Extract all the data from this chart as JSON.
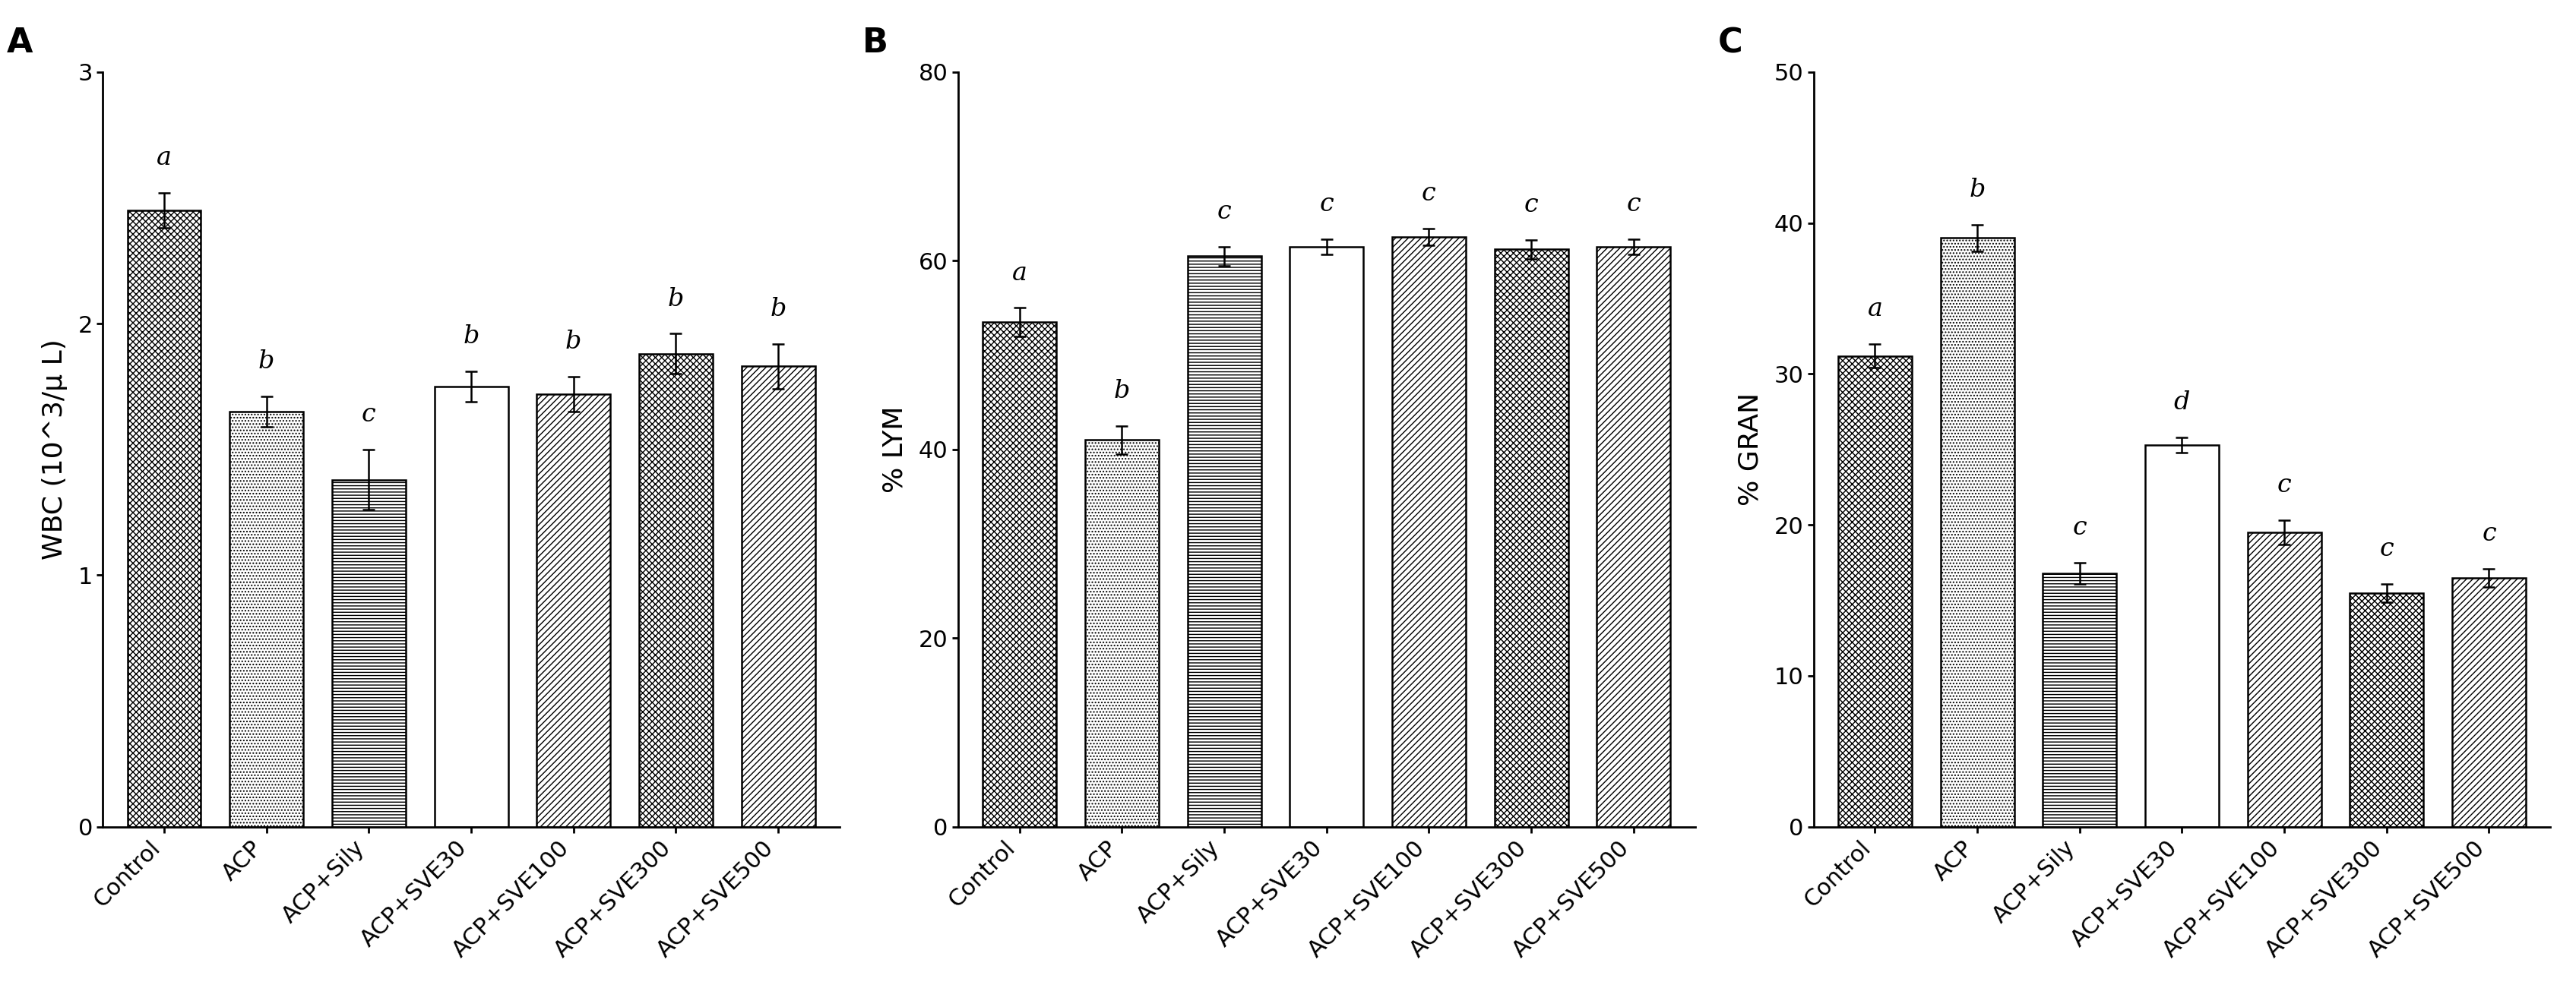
{
  "categories": [
    "Control",
    "ACP",
    "ACP+Sily",
    "ACP+SVE30",
    "ACP+SVE100",
    "ACP+SVE300",
    "ACP+SVE500"
  ],
  "panel_A": {
    "title": "A",
    "ylabel": "WBC (10^3/μ L)",
    "ylim": [
      0,
      3
    ],
    "yticks": [
      0,
      1,
      2,
      3
    ],
    "values": [
      2.45,
      1.65,
      1.38,
      1.75,
      1.72,
      1.88,
      1.83
    ],
    "errors": [
      0.07,
      0.06,
      0.12,
      0.06,
      0.07,
      0.08,
      0.09
    ],
    "letters": [
      "a",
      "b",
      "c",
      "b",
      "b",
      "b",
      "b"
    ]
  },
  "panel_B": {
    "title": "B",
    "ylabel": "% LYM",
    "ylim": [
      0,
      80
    ],
    "yticks": [
      0,
      20,
      40,
      60,
      80
    ],
    "values": [
      53.5,
      41.0,
      60.5,
      61.5,
      62.5,
      61.2,
      61.5
    ],
    "errors": [
      1.5,
      1.5,
      1.0,
      0.8,
      0.9,
      1.0,
      0.8
    ],
    "letters": [
      "a",
      "b",
      "c",
      "c",
      "c",
      "c",
      "c"
    ]
  },
  "panel_C": {
    "title": "C",
    "ylabel": "% GRAN",
    "ylim": [
      0,
      50
    ],
    "yticks": [
      0,
      10,
      20,
      30,
      40,
      50
    ],
    "values": [
      31.2,
      39.0,
      16.8,
      25.3,
      19.5,
      15.5,
      16.5
    ],
    "errors": [
      0.8,
      0.9,
      0.7,
      0.5,
      0.8,
      0.6,
      0.6
    ],
    "letters": [
      "a",
      "b",
      "c",
      "d",
      "c",
      "c",
      "c"
    ]
  },
  "hatch_list": [
    "XXXX",
    "....",
    "----",
    "",
    "////",
    "XXXX",
    "////"
  ],
  "facecolor_list": [
    "white",
    "white",
    "white",
    "white",
    "white",
    "white",
    "white"
  ],
  "label_fontsize": 26,
  "tick_fontsize": 22,
  "title_fontsize": 32,
  "letter_fontsize": 24,
  "bar_width": 0.72
}
